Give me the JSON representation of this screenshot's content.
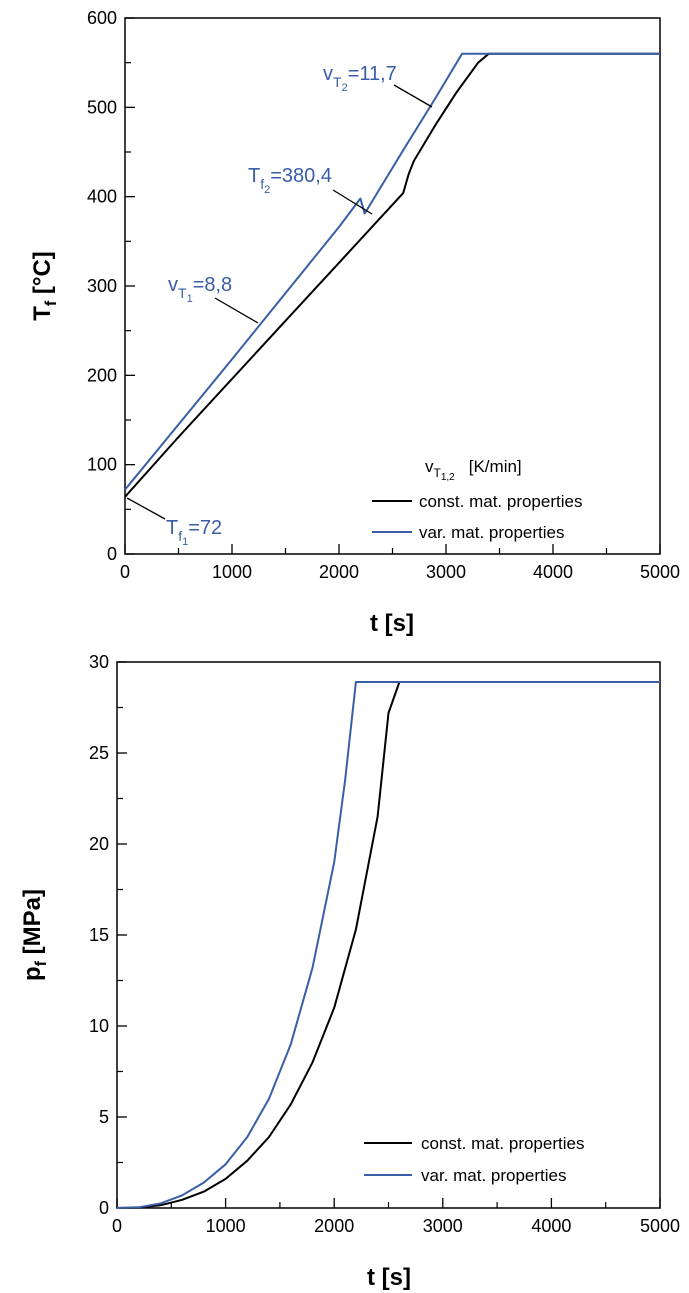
{
  "colors": {
    "const": "#000000",
    "var": "#3a5da8",
    "annotation": "#3a5da8"
  },
  "chart_data": [
    {
      "type": "line",
      "ylabel_main": "T",
      "ylabel_sub": "f",
      "ylabel_unit": "[°C]",
      "xlabel": "t [s]",
      "xlim": [
        0,
        5000
      ],
      "ylim": [
        0,
        600
      ],
      "xticks": [
        0,
        1000,
        2000,
        3000,
        4000,
        5000
      ],
      "yticks": [
        0,
        100,
        200,
        300,
        400,
        500,
        600
      ],
      "legend": {
        "header_main": "v",
        "header_sub1": "T",
        "header_sub2": "1,2",
        "header_unit": "[K/min]",
        "entries": [
          "const. mat. properties",
          "var. mat. properties"
        ]
      },
      "annotations": {
        "tf1": {
          "main": "T",
          "sub1": "f",
          "sub2": "1",
          "value": "=72"
        },
        "vt1": {
          "main": "v",
          "sub1": "T",
          "sub2": "1",
          "value": "=8,8"
        },
        "tf2": {
          "main": "T",
          "sub1": "f",
          "sub2": "2",
          "value": "=380,4"
        },
        "vt2": {
          "main": "v",
          "sub1": "T",
          "sub2": "2",
          "value": "=11,7"
        }
      },
      "series": [
        {
          "name": "const. mat. properties",
          "color": "#000000",
          "x": [
            0,
            500,
            1000,
            1500,
            2000,
            2400,
            2600,
            2650,
            2700,
            2900,
            3100,
            3300,
            3400,
            5000
          ],
          "y": [
            64,
            131,
            196,
            261,
            326,
            378,
            404,
            425,
            440,
            480,
            517,
            550,
            560,
            560
          ]
        },
        {
          "name": "var. mat. properties",
          "color": "#3a5da8",
          "x": [
            0,
            500,
            1000,
            1500,
            2000,
            2200,
            2240,
            2600,
            2900,
            3150,
            5000
          ],
          "y": [
            72,
            145,
            218,
            292,
            366,
            398,
            381,
            452,
            510,
            560,
            560
          ]
        }
      ]
    },
    {
      "type": "line",
      "ylabel_main": "p",
      "ylabel_sub": "f",
      "ylabel_unit": "[MPa]",
      "xlabel": "t [s]",
      "xlim": [
        0,
        5000
      ],
      "ylim": [
        0,
        30
      ],
      "xticks": [
        0,
        1000,
        2000,
        3000,
        4000,
        5000
      ],
      "yticks": [
        0,
        5,
        10,
        15,
        20,
        25,
        30
      ],
      "legend": {
        "entries": [
          "const. mat. properties",
          "var. mat. properties"
        ]
      },
      "series": [
        {
          "name": "const. mat. properties",
          "color": "#000000",
          "x": [
            0,
            200,
            400,
            600,
            800,
            1000,
            1200,
            1400,
            1600,
            1800,
            2000,
            2200,
            2400,
            2500,
            2600,
            5000
          ],
          "y": [
            0,
            0.02,
            0.15,
            0.45,
            0.9,
            1.6,
            2.6,
            3.9,
            5.7,
            8.0,
            11.0,
            15.3,
            21.5,
            27.2,
            28.9,
            28.9
          ]
        },
        {
          "name": "var. mat. properties",
          "color": "#3a5da8",
          "x": [
            0,
            200,
            400,
            600,
            800,
            1000,
            1200,
            1400,
            1600,
            1800,
            2000,
            2100,
            2200,
            5000
          ],
          "y": [
            0,
            0.04,
            0.25,
            0.7,
            1.4,
            2.4,
            3.9,
            6.0,
            9.0,
            13.2,
            19.0,
            23.5,
            28.9,
            28.9
          ]
        }
      ]
    }
  ]
}
